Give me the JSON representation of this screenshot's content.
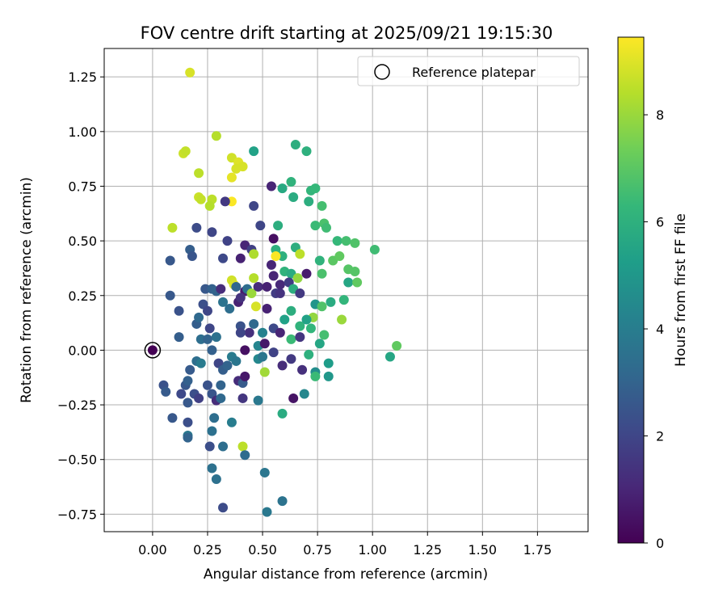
{
  "chart_data": {
    "type": "scatter",
    "title": "FOV centre drift starting at 2025/09/21 19:15:30",
    "xlabel": "Angular distance from reference (arcmin)",
    "ylabel": "Rotation from reference (arcmin)",
    "xlim": [
      -0.22,
      1.98
    ],
    "ylim": [
      -0.83,
      1.38
    ],
    "xticks": [
      0.0,
      0.25,
      0.5,
      0.75,
      1.0,
      1.25,
      1.5,
      1.75
    ],
    "xtick_labels": [
      "0.00",
      "0.25",
      "0.50",
      "0.75",
      "1.00",
      "1.25",
      "1.50",
      "1.75"
    ],
    "yticks": [
      -0.75,
      -0.5,
      -0.25,
      0.0,
      0.25,
      0.5,
      0.75,
      1.0,
      1.25
    ],
    "ytick_labels": [
      "−0.75",
      "−0.50",
      "−0.25",
      "0.00",
      "0.25",
      "0.50",
      "0.75",
      "1.00",
      "1.25"
    ],
    "grid": true,
    "legend": {
      "location": "upper right",
      "entries": [
        "Reference platepar"
      ]
    },
    "reference_point": {
      "x": 0.0,
      "y": 0.0,
      "label": "Reference platepar"
    },
    "colorbar": {
      "label": "Hours from first FF file",
      "min": 0,
      "max": 9.45,
      "ticks": [
        0,
        2,
        4,
        6,
        8
      ],
      "tick_labels": [
        "0",
        "2",
        "4",
        "6",
        "8"
      ],
      "colormap": "viridis",
      "stops": [
        "#440154",
        "#482878",
        "#3e4989",
        "#31688e",
        "#26828e",
        "#1f9e89",
        "#35b779",
        "#6ece58",
        "#b5de2b",
        "#fde725"
      ]
    },
    "points": [
      [
        0.0,
        0.0,
        0.0
      ],
      [
        0.17,
        1.27,
        8.9
      ],
      [
        0.29,
        0.98,
        8.4
      ],
      [
        0.14,
        0.9,
        8.7
      ],
      [
        0.15,
        0.91,
        8.6
      ],
      [
        0.21,
        0.81,
        8.5
      ],
      [
        0.36,
        0.88,
        8.8
      ],
      [
        0.39,
        0.86,
        9.0
      ],
      [
        0.38,
        0.83,
        8.9
      ],
      [
        0.41,
        0.84,
        8.9
      ],
      [
        0.36,
        0.79,
        9.1
      ],
      [
        0.46,
        0.91,
        5.4
      ],
      [
        0.21,
        0.7,
        8.7
      ],
      [
        0.22,
        0.69,
        8.6
      ],
      [
        0.27,
        0.69,
        8.5
      ],
      [
        0.26,
        0.66,
        8.4
      ],
      [
        0.36,
        0.68,
        9.4
      ],
      [
        0.33,
        0.68,
        1.6
      ],
      [
        0.46,
        0.66,
        2.0
      ],
      [
        0.65,
        0.94,
        5.9
      ],
      [
        0.7,
        0.91,
        6.0
      ],
      [
        0.63,
        0.77,
        6.1
      ],
      [
        0.59,
        0.74,
        5.7
      ],
      [
        0.54,
        0.75,
        1.0
      ],
      [
        0.72,
        0.73,
        6.2
      ],
      [
        0.74,
        0.74,
        6.3
      ],
      [
        0.64,
        0.7,
        5.8
      ],
      [
        0.71,
        0.68,
        5.9
      ],
      [
        0.77,
        0.66,
        6.6
      ],
      [
        0.09,
        0.56,
        8.5
      ],
      [
        0.2,
        0.56,
        2.2
      ],
      [
        0.27,
        0.54,
        2.0
      ],
      [
        0.49,
        0.57,
        2.0
      ],
      [
        0.57,
        0.57,
        5.9
      ],
      [
        0.74,
        0.57,
        6.4
      ],
      [
        0.78,
        0.58,
        6.7
      ],
      [
        0.79,
        0.56,
        6.5
      ],
      [
        0.84,
        0.5,
        6.3
      ],
      [
        0.88,
        0.5,
        6.6
      ],
      [
        0.92,
        0.49,
        6.8
      ],
      [
        1.01,
        0.46,
        6.5
      ],
      [
        0.34,
        0.5,
        1.9
      ],
      [
        0.42,
        0.48,
        1.0
      ],
      [
        0.45,
        0.46,
        1.8
      ],
      [
        0.46,
        0.44,
        8.3
      ],
      [
        0.55,
        0.51,
        0.4
      ],
      [
        0.56,
        0.46,
        6.0
      ],
      [
        0.59,
        0.43,
        6.0
      ],
      [
        0.56,
        0.43,
        9.4
      ],
      [
        0.65,
        0.47,
        5.9
      ],
      [
        0.67,
        0.44,
        8.5
      ],
      [
        0.76,
        0.41,
        6.1
      ],
      [
        0.82,
        0.41,
        7.0
      ],
      [
        0.85,
        0.43,
        7.1
      ],
      [
        0.08,
        0.41,
        2.6
      ],
      [
        0.17,
        0.46,
        2.8
      ],
      [
        0.18,
        0.43,
        2.5
      ],
      [
        0.32,
        0.42,
        2.1
      ],
      [
        0.4,
        0.42,
        0.9
      ],
      [
        0.54,
        0.39,
        1.0
      ],
      [
        0.55,
        0.34,
        1.0
      ],
      [
        0.6,
        0.36,
        6.1
      ],
      [
        0.63,
        0.35,
        5.8
      ],
      [
        0.66,
        0.33,
        7.9
      ],
      [
        0.7,
        0.35,
        0.7
      ],
      [
        0.77,
        0.35,
        6.7
      ],
      [
        0.89,
        0.37,
        6.9
      ],
      [
        0.92,
        0.36,
        6.9
      ],
      [
        0.89,
        0.31,
        5.6
      ],
      [
        0.93,
        0.31,
        7.1
      ],
      [
        0.08,
        0.25,
        2.6
      ],
      [
        0.12,
        0.18,
        2.4
      ],
      [
        0.24,
        0.28,
        2.6
      ],
      [
        0.27,
        0.28,
        2.9
      ],
      [
        0.29,
        0.27,
        3.0
      ],
      [
        0.31,
        0.28,
        1.2
      ],
      [
        0.36,
        0.32,
        8.8
      ],
      [
        0.37,
        0.3,
        8.9
      ],
      [
        0.38,
        0.29,
        3.1
      ],
      [
        0.42,
        0.27,
        0.7
      ],
      [
        0.43,
        0.28,
        3.4
      ],
      [
        0.45,
        0.26,
        8.0
      ],
      [
        0.46,
        0.33,
        8.4
      ],
      [
        0.48,
        0.29,
        1.2
      ],
      [
        0.52,
        0.29,
        0.9
      ],
      [
        0.56,
        0.26,
        1.7
      ],
      [
        0.58,
        0.26,
        1.4
      ],
      [
        0.58,
        0.3,
        1.1
      ],
      [
        0.62,
        0.31,
        1.7
      ],
      [
        0.64,
        0.28,
        5.9
      ],
      [
        0.67,
        0.26,
        1.6
      ],
      [
        0.74,
        0.21,
        4.9
      ],
      [
        0.77,
        0.2,
        6.8
      ],
      [
        0.81,
        0.22,
        5.8
      ],
      [
        0.87,
        0.23,
        6.2
      ],
      [
        0.23,
        0.21,
        2.3
      ],
      [
        0.25,
        0.18,
        2.0
      ],
      [
        0.32,
        0.22,
        3.6
      ],
      [
        0.35,
        0.19,
        3.4
      ],
      [
        0.39,
        0.22,
        0.9
      ],
      [
        0.4,
        0.24,
        1.4
      ],
      [
        0.47,
        0.2,
        8.9
      ],
      [
        0.52,
        0.19,
        0.9
      ],
      [
        0.63,
        0.18,
        5.9
      ],
      [
        0.73,
        0.15,
        7.9
      ],
      [
        0.86,
        0.14,
        8.0
      ],
      [
        0.2,
        0.12,
        2.8
      ],
      [
        0.21,
        0.15,
        3.2
      ],
      [
        0.26,
        0.1,
        2.0
      ],
      [
        0.4,
        0.11,
        2.4
      ],
      [
        0.44,
        0.08,
        1.3
      ],
      [
        0.46,
        0.12,
        3.2
      ],
      [
        0.5,
        0.08,
        4.2
      ],
      [
        0.55,
        0.1,
        2.1
      ],
      [
        0.58,
        0.08,
        1.0
      ],
      [
        0.6,
        0.14,
        5.4
      ],
      [
        0.67,
        0.11,
        6.1
      ],
      [
        0.7,
        0.14,
        5.4
      ],
      [
        0.78,
        0.07,
        6.6
      ],
      [
        0.12,
        0.06,
        2.8
      ],
      [
        0.22,
        0.05,
        3.4
      ],
      [
        0.25,
        0.05,
        3.0
      ],
      [
        0.27,
        0.0,
        2.9
      ],
      [
        0.29,
        0.06,
        3.5
      ],
      [
        0.4,
        0.08,
        2.0
      ],
      [
        0.42,
        0.0,
        0.4
      ],
      [
        0.48,
        0.02,
        4.3
      ],
      [
        0.51,
        0.03,
        0.6
      ],
      [
        0.55,
        -0.01,
        1.9
      ],
      [
        0.63,
        0.05,
        6.4
      ],
      [
        0.67,
        0.06,
        1.5
      ],
      [
        0.72,
        0.1,
        6.2
      ],
      [
        0.76,
        0.03,
        5.6
      ],
      [
        0.71,
        -0.02,
        6.0
      ],
      [
        0.2,
        -0.05,
        3.4
      ],
      [
        0.22,
        -0.06,
        3.9
      ],
      [
        0.17,
        -0.09,
        2.7
      ],
      [
        0.3,
        -0.06,
        2.0
      ],
      [
        0.32,
        -0.09,
        2.8
      ],
      [
        0.34,
        -0.07,
        3.0
      ],
      [
        0.36,
        -0.03,
        3.9
      ],
      [
        0.38,
        -0.05,
        3.7
      ],
      [
        0.48,
        -0.04,
        4.4
      ],
      [
        0.5,
        -0.03,
        3.7
      ],
      [
        0.51,
        -0.1,
        8.1
      ],
      [
        0.59,
        -0.07,
        1.2
      ],
      [
        0.63,
        -0.04,
        1.6
      ],
      [
        0.68,
        -0.09,
        1.3
      ],
      [
        0.74,
        -0.1,
        4.6
      ],
      [
        0.74,
        -0.12,
        6.4
      ],
      [
        0.8,
        -0.06,
        5.2
      ],
      [
        0.8,
        -0.12,
        5.0
      ],
      [
        0.05,
        -0.16,
        2.4
      ],
      [
        0.06,
        -0.19,
        2.7
      ],
      [
        0.15,
        -0.16,
        2.6
      ],
      [
        0.16,
        -0.14,
        2.9
      ],
      [
        0.13,
        -0.2,
        2.1
      ],
      [
        0.19,
        -0.2,
        2.3
      ],
      [
        0.21,
        -0.22,
        1.8
      ],
      [
        0.25,
        -0.16,
        2.4
      ],
      [
        0.27,
        -0.2,
        2.5
      ],
      [
        0.29,
        -0.23,
        1.2
      ],
      [
        0.31,
        -0.16,
        3.0
      ],
      [
        0.31,
        -0.22,
        3.2
      ],
      [
        0.39,
        -0.14,
        1.2
      ],
      [
        0.41,
        -0.15,
        2.7
      ],
      [
        0.42,
        -0.12,
        0.6
      ],
      [
        0.41,
        -0.22,
        1.5
      ],
      [
        0.48,
        -0.23,
        3.8
      ],
      [
        0.64,
        -0.22,
        0.5
      ],
      [
        0.69,
        -0.2,
        4.4
      ],
      [
        0.16,
        -0.24,
        2.6
      ],
      [
        0.09,
        -0.31,
        2.6
      ],
      [
        0.16,
        -0.33,
        2.3
      ],
      [
        0.28,
        -0.31,
        3.4
      ],
      [
        0.36,
        -0.33,
        4.0
      ],
      [
        0.59,
        -0.29,
        5.8
      ],
      [
        0.16,
        -0.39,
        3.8
      ],
      [
        0.16,
        -0.4,
        3.0
      ],
      [
        0.27,
        -0.37,
        3.5
      ],
      [
        0.26,
        -0.44,
        2.3
      ],
      [
        0.32,
        -0.44,
        3.4
      ],
      [
        0.41,
        -0.44,
        8.5
      ],
      [
        0.42,
        -0.48,
        3.3
      ],
      [
        0.27,
        -0.54,
        3.5
      ],
      [
        0.29,
        -0.59,
        3.5
      ],
      [
        0.51,
        -0.56,
        3.7
      ],
      [
        0.32,
        -0.72,
        2.2
      ],
      [
        0.59,
        -0.69,
        3.6
      ],
      [
        0.52,
        -0.74,
        3.8
      ],
      [
        1.08,
        -0.03,
        5.6
      ],
      [
        1.11,
        0.02,
        7.1
      ]
    ]
  }
}
